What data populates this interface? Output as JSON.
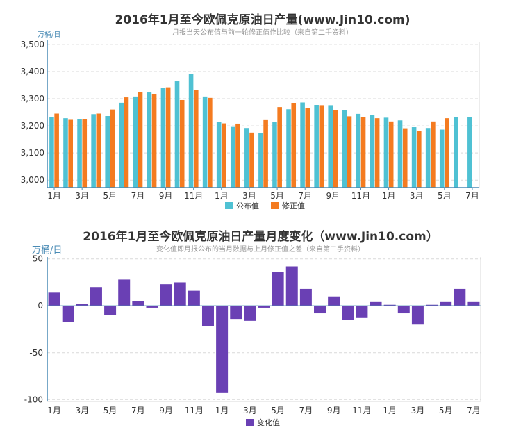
{
  "colors": {
    "published": "#4fc1d3",
    "revised": "#f47b20",
    "change": "#6a40b4",
    "axis": "#4a8bb5",
    "grid": "#d9d9d9"
  },
  "chart_data": [
    {
      "type": "bar",
      "title": "2016年1月至今欧佩克原油日产量(www.Jin10.com)",
      "subtitle": "月报当天公布值与前一轮修正值作比较（来自第二手资料）",
      "unit_label": "万桶/日",
      "ylim": [
        2980,
        3510
      ],
      "yticks": [
        3000,
        3100,
        3200,
        3300,
        3400,
        3500
      ],
      "ytick_labels": [
        "3,000",
        "3,100",
        "3,200",
        "3,300",
        "3,400",
        "3,500"
      ],
      "xtick_labels": [
        "1月",
        "3月",
        "5月",
        "7月",
        "9月",
        "11月",
        "1月",
        "3月",
        "5月",
        "7月",
        "9月",
        "11月",
        "1月",
        "3月",
        "5月",
        "7月"
      ],
      "xtick_every": 2,
      "legend": [
        "公布值",
        "修正值"
      ],
      "series": [
        {
          "name": "公布值",
          "values": [
            3233,
            3228,
            3225,
            3243,
            3236,
            3285,
            3308,
            3323,
            3340,
            3364,
            3390,
            3308,
            3214,
            3196,
            3192,
            3173,
            3214,
            3261,
            3286,
            3277,
            3276,
            3258,
            3244,
            3240,
            3230,
            3220,
            3195,
            3192,
            3186,
            3233,
            3233
          ]
        },
        {
          "name": "修正值",
          "values": [
            3245,
            3222,
            3225,
            3245,
            3260,
            3305,
            3325,
            3318,
            3342,
            3295,
            3331,
            3303,
            3209,
            3208,
            3175,
            3221,
            3269,
            3284,
            3266,
            3276,
            3257,
            3235,
            3231,
            3228,
            3216,
            3191,
            3182,
            3216,
            3228,
            null,
            null
          ]
        }
      ]
    },
    {
      "type": "bar",
      "title": "2016年1月至今欧佩克原油日产量月度变化（www.Jin10.com）",
      "subtitle": "变化值即月报公布的当月数据与上月修正值之差（来自第二手资料）",
      "unit_label": "万桶/日",
      "ylim": [
        -102,
        52
      ],
      "yticks": [
        50,
        0,
        -50,
        -100
      ],
      "ytick_labels": [
        "50",
        "0",
        "-50",
        "-100"
      ],
      "xtick_labels": [
        "1月",
        "3月",
        "5月",
        "7月",
        "9月",
        "11月",
        "1月",
        "3月",
        "5月",
        "7月",
        "9月",
        "11月",
        "1月",
        "3月",
        "5月",
        "7月"
      ],
      "xtick_every": 2,
      "legend": [
        "变化值"
      ],
      "series": [
        {
          "name": "变化值",
          "values": [
            14,
            -17,
            2,
            20,
            -10,
            28,
            5,
            -2,
            23,
            25,
            16,
            -22,
            -93,
            -14,
            -16,
            -2,
            36,
            42,
            18,
            -8,
            10,
            -15,
            -13,
            4,
            0,
            -8,
            -20,
            1,
            4,
            18,
            4
          ]
        }
      ]
    }
  ]
}
